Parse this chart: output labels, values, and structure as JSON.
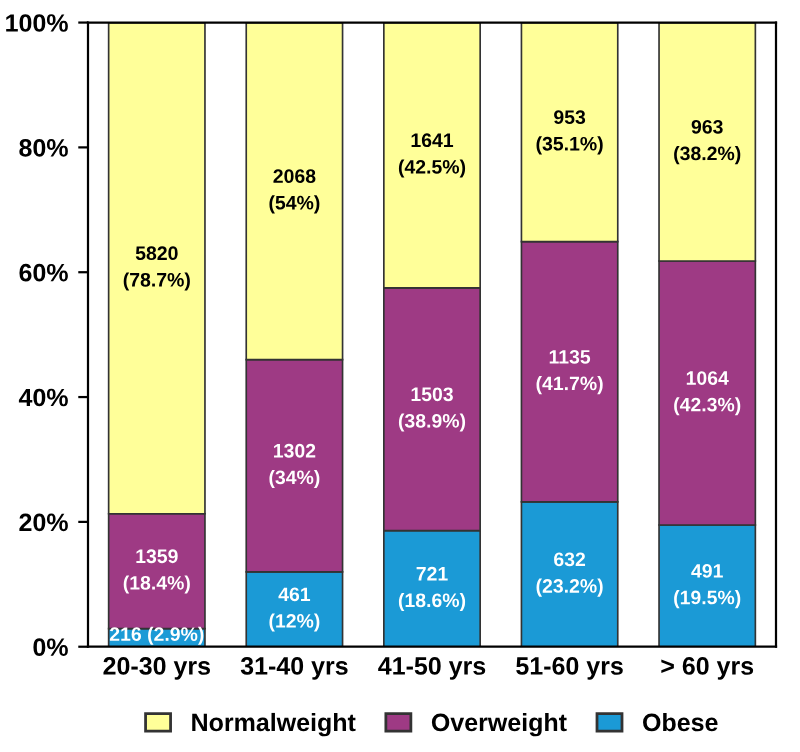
{
  "chart_data": {
    "type": "bar",
    "stacked": true,
    "categories": [
      "20-30 yrs",
      "31-40 yrs",
      "41-50 yrs",
      "51-60 yrs",
      "> 60 yrs"
    ],
    "series": [
      {
        "name": "Obese",
        "color": "#1b9ad6",
        "values": [
          2.9,
          12,
          18.6,
          23.2,
          19.5
        ],
        "value_labels": [
          "216 (2.9%)",
          "461\n(12%)",
          "721\n(18.6%)",
          "632\n(23.2%)",
          "491\n(19.5%)"
        ]
      },
      {
        "name": "Overweight",
        "color": "#9e3a84",
        "values": [
          18.4,
          34,
          38.9,
          41.7,
          42.3
        ],
        "value_labels": [
          "1359\n(18.4%)",
          "1302\n(34%)",
          "1503\n(38.9%)",
          "1135\n(41.7%)",
          "1064\n(42.3%)"
        ]
      },
      {
        "name": "Normalweight",
        "color": "#ffff99",
        "values": [
          78.7,
          54,
          42.5,
          35.1,
          38.2
        ],
        "value_labels": [
          "5820\n(78.7%)",
          "2068\n(54%)",
          "1641\n(42.5%)",
          "953\n(35.1%)",
          "963\n(38.2%)"
        ]
      }
    ],
    "ylim": [
      0,
      100
    ],
    "yticks": [
      {
        "value": 0,
        "label": "0%"
      },
      {
        "value": 20,
        "label": "20%"
      },
      {
        "value": 40,
        "label": "40%"
      },
      {
        "value": 60,
        "label": "60%"
      },
      {
        "value": 80,
        "label": "80%"
      },
      {
        "value": 100,
        "label": "100%"
      }
    ],
    "legend": "bottom",
    "grid": false
  }
}
